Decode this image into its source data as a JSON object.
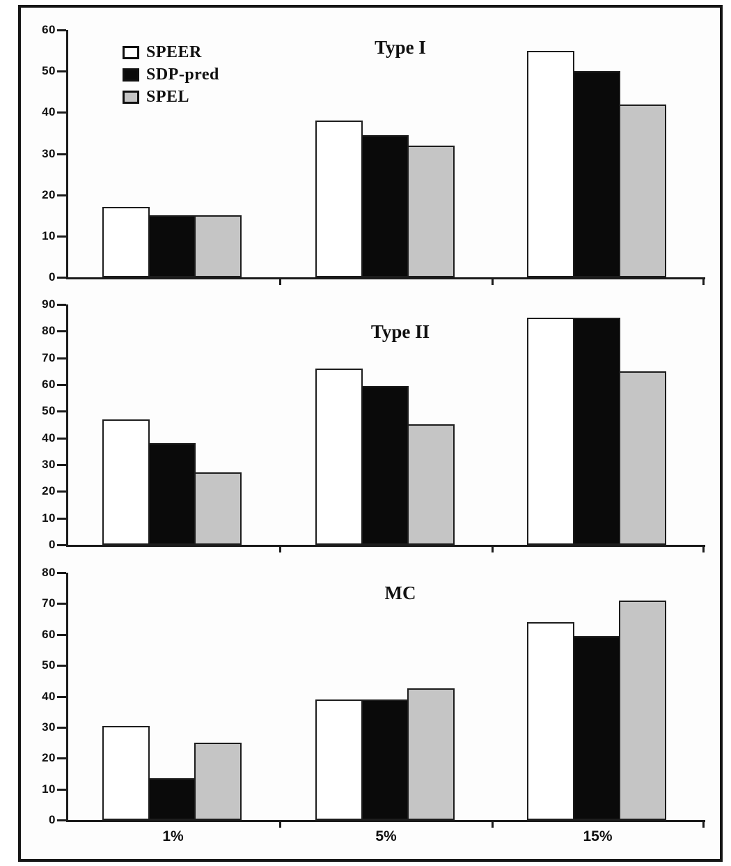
{
  "figure": {
    "background": "#ffffff",
    "frame_color": "#161616",
    "axis_color": "#1b1b1b",
    "bar_border_color": "#1d1d1d"
  },
  "legend": {
    "position": "top-left-of-first-chart",
    "items": [
      {
        "label": "SPEER",
        "swatch": "#ffffff"
      },
      {
        "label": "SDP-pred",
        "swatch": "#0a0a0a"
      },
      {
        "label": "SPEL",
        "swatch": "#c5c5c5"
      }
    ]
  },
  "chart_data": [
    {
      "type": "bar",
      "title": "Type I",
      "categories": [
        "1%",
        "5%",
        "15%"
      ],
      "series": [
        {
          "name": "SPEER",
          "color": "#ffffff",
          "values": [
            17,
            38,
            55
          ]
        },
        {
          "name": "SDP-pred",
          "color": "#0a0a0a",
          "values": [
            15,
            34.5,
            50
          ]
        },
        {
          "name": "SPEL",
          "color": "#c5c5c5",
          "values": [
            15,
            32,
            42
          ]
        }
      ],
      "ylim": [
        0,
        60
      ],
      "ytick_step": 10,
      "grid": false,
      "x_labels_shown": false
    },
    {
      "type": "bar",
      "title": "Type II",
      "categories": [
        "1%",
        "5%",
        "15%"
      ],
      "series": [
        {
          "name": "SPEER",
          "color": "#ffffff",
          "values": [
            47,
            66,
            85
          ]
        },
        {
          "name": "SDP-pred",
          "color": "#0a0a0a",
          "values": [
            38,
            59.5,
            85
          ]
        },
        {
          "name": "SPEL",
          "color": "#c5c5c5",
          "values": [
            27,
            45,
            65
          ]
        }
      ],
      "ylim": [
        0,
        90
      ],
      "ytick_step": 10,
      "grid": false,
      "x_labels_shown": false
    },
    {
      "type": "bar",
      "title": "MC",
      "categories": [
        "1%",
        "5%",
        "15%"
      ],
      "series": [
        {
          "name": "SPEER",
          "color": "#ffffff",
          "values": [
            30.5,
            39,
            64
          ]
        },
        {
          "name": "SDP-pred",
          "color": "#0a0a0a",
          "values": [
            13.5,
            39,
            59.5
          ]
        },
        {
          "name": "SPEL",
          "color": "#c5c5c5",
          "values": [
            25,
            42.5,
            71
          ]
        }
      ],
      "ylim": [
        0,
        80
      ],
      "ytick_step": 10,
      "grid": false,
      "x_labels_shown": true
    }
  ]
}
